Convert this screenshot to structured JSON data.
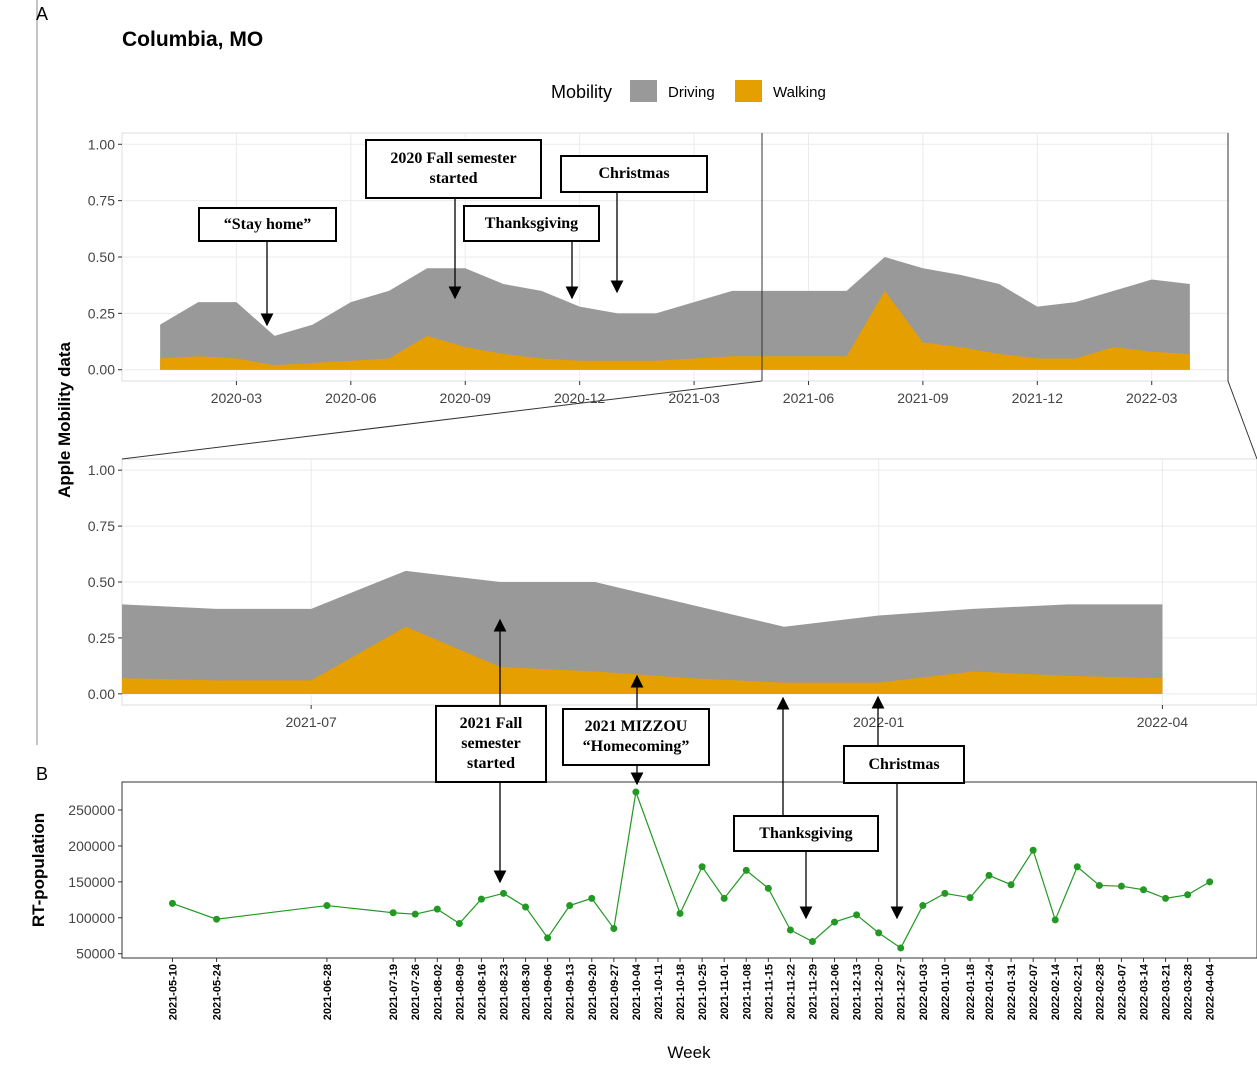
{
  "panel_labels": [
    "A",
    "B"
  ],
  "chart_data": [
    {
      "type": "area",
      "title": "Columbia, MO",
      "y_label": "Apple Mobility data",
      "legend_title": "Mobility",
      "x": [
        "2020-01",
        "2020-02",
        "2020-03",
        "2020-04",
        "2020-05",
        "2020-06",
        "2020-07",
        "2020-08",
        "2020-09",
        "2020-10",
        "2020-11",
        "2020-12",
        "2021-01",
        "2021-02",
        "2021-03",
        "2021-04",
        "2021-05",
        "2021-06",
        "2021-07",
        "2021-08",
        "2021-09",
        "2021-10",
        "2021-11",
        "2021-12",
        "2022-01",
        "2022-02",
        "2022-03",
        "2022-04"
      ],
      "series": [
        {
          "name": "Driving",
          "color": "#999999",
          "values": [
            0.2,
            0.3,
            0.3,
            0.15,
            0.2,
            0.3,
            0.35,
            0.45,
            0.45,
            0.38,
            0.35,
            0.28,
            0.25,
            0.25,
            0.3,
            0.35,
            0.35,
            0.35,
            0.35,
            0.5,
            0.45,
            0.42,
            0.38,
            0.28,
            0.3,
            0.35,
            0.4,
            0.38
          ]
        },
        {
          "name": "Walking",
          "color": "#E69F00",
          "values": [
            0.05,
            0.06,
            0.05,
            0.02,
            0.03,
            0.04,
            0.05,
            0.15,
            0.1,
            0.07,
            0.05,
            0.04,
            0.04,
            0.04,
            0.05,
            0.06,
            0.06,
            0.06,
            0.06,
            0.35,
            0.12,
            0.1,
            0.07,
            0.05,
            0.05,
            0.1,
            0.08,
            0.07
          ]
        }
      ],
      "xlim": [
        "2019-12",
        "2022-05"
      ],
      "xticks": [
        "2020-03",
        "2020-06",
        "2020-09",
        "2020-12",
        "2021-03",
        "2021-06",
        "2021-09",
        "2021-12",
        "2022-03"
      ],
      "ylim": [
        -0.05,
        1.05
      ],
      "yticks": [
        {
          "value": 0,
          "label": "0.00"
        },
        {
          "value": 0.25,
          "label": "0.25"
        },
        {
          "value": 0.5,
          "label": "0.50"
        },
        {
          "value": 0.75,
          "label": "0.75"
        },
        {
          "value": 1,
          "label": "1.00"
        }
      ],
      "grid": true
    },
    {
      "type": "area",
      "x": [
        "2021-05",
        "2021-06",
        "2021-07",
        "2021-08",
        "2021-09",
        "2021-10",
        "2021-11",
        "2021-12",
        "2022-01",
        "2022-02",
        "2022-03",
        "2022-04"
      ],
      "series": [
        {
          "color": "#999999",
          "values": [
            0.4,
            0.38,
            0.38,
            0.55,
            0.5,
            0.5,
            0.4,
            0.3,
            0.35,
            0.38,
            0.4,
            0.4
          ]
        },
        {
          "color": "#E69F00",
          "values": [
            0.07,
            0.06,
            0.06,
            0.3,
            0.12,
            0.1,
            0.07,
            0.05,
            0.05,
            0.1,
            0.08,
            0.07
          ]
        }
      ],
      "xlim": [
        "2021-05",
        "2022-05"
      ],
      "xticks": [
        "2021-07",
        "2022-01",
        "2022-04"
      ],
      "ylim": [
        -0.05,
        1.05
      ],
      "yticks": [
        {
          "value": 0,
          "label": "0.00"
        },
        {
          "value": 0.25,
          "label": "0.25"
        },
        {
          "value": 0.5,
          "label": "0.50"
        },
        {
          "value": 0.75,
          "label": "0.75"
        },
        {
          "value": 1,
          "label": "1.00"
        }
      ],
      "grid": true
    },
    {
      "type": "line",
      "y_label": "RT-population",
      "x_label": "Week",
      "x": [
        "2021-05-10",
        "2021-05-24",
        "2021-06-28",
        "2021-07-19",
        "2021-07-26",
        "2021-08-02",
        "2021-08-09",
        "2021-08-16",
        "2021-08-23",
        "2021-08-30",
        "2021-09-06",
        "2021-09-13",
        "2021-09-20",
        "2021-09-27",
        "2021-10-04",
        "2021-10-18",
        "2021-10-25",
        "2021-11-01",
        "2021-11-08",
        "2021-11-15",
        "2021-11-22",
        "2021-11-29",
        "2021-12-06",
        "2021-12-13",
        "2021-12-20",
        "2021-12-27",
        "2022-01-03",
        "2022-01-10",
        "2022-01-18",
        "2022-01-24",
        "2022-01-31",
        "2022-02-07",
        "2022-02-14",
        "2022-02-21",
        "2022-02-28",
        "2022-03-07",
        "2022-03-14",
        "2022-03-21",
        "2022-03-28",
        "2022-04-04"
      ],
      "series": [
        {
          "color": "#229922",
          "values": [
            120000,
            98000,
            117000,
            107000,
            105000,
            112000,
            92000,
            126000,
            134000,
            115000,
            72000,
            117000,
            127000,
            85000,
            275000,
            106000,
            171000,
            127000,
            166000,
            141000,
            83000,
            67000,
            94000,
            104000,
            79000,
            58000,
            117000,
            134000,
            128000,
            159000,
            146000,
            194000,
            97000,
            171000,
            145000,
            144000,
            139000,
            127000,
            132000,
            150000
          ]
        }
      ],
      "xlim": [
        "2021-04-24",
        "2022-04-19"
      ],
      "xticks": [
        "2021-05-10",
        "2021-05-24",
        "2021-06-28",
        "2021-07-19",
        "2021-07-26",
        "2021-08-02",
        "2021-08-09",
        "2021-08-16",
        "2021-08-23",
        "2021-08-30",
        "2021-09-06",
        "2021-09-13",
        "2021-09-20",
        "2021-09-27",
        "2021-10-04",
        "2021-10-11",
        "2021-10-18",
        "2021-10-25",
        "2021-11-01",
        "2021-11-08",
        "2021-11-15",
        "2021-11-22",
        "2021-11-29",
        "2021-12-06",
        "2021-12-13",
        "2021-12-20",
        "2021-12-27",
        "2022-01-03",
        "2022-01-10",
        "2022-01-18",
        "2022-01-24",
        "2022-01-31",
        "2022-02-07",
        "2022-02-14",
        "2022-02-21",
        "2022-02-28",
        "2022-03-07",
        "2022-03-14",
        "2022-03-21",
        "2022-03-28",
        "2022-04-04"
      ],
      "ylim": [
        44000,
        289000
      ],
      "yticks": [
        50000,
        100000,
        150000,
        200000,
        250000
      ],
      "grid": false
    }
  ],
  "annotations": [
    {
      "text": "“Stay home”"
    },
    {
      "text": "2020 Fall semester started"
    },
    {
      "text": "Thanksgiving"
    },
    {
      "text": "Christmas"
    },
    {
      "text": "2021 Fall semester started"
    },
    {
      "text": "2021 MIZZOU “Homecoming”"
    },
    {
      "text": "Thanksgiving"
    },
    {
      "text": "Christmas"
    }
  ]
}
